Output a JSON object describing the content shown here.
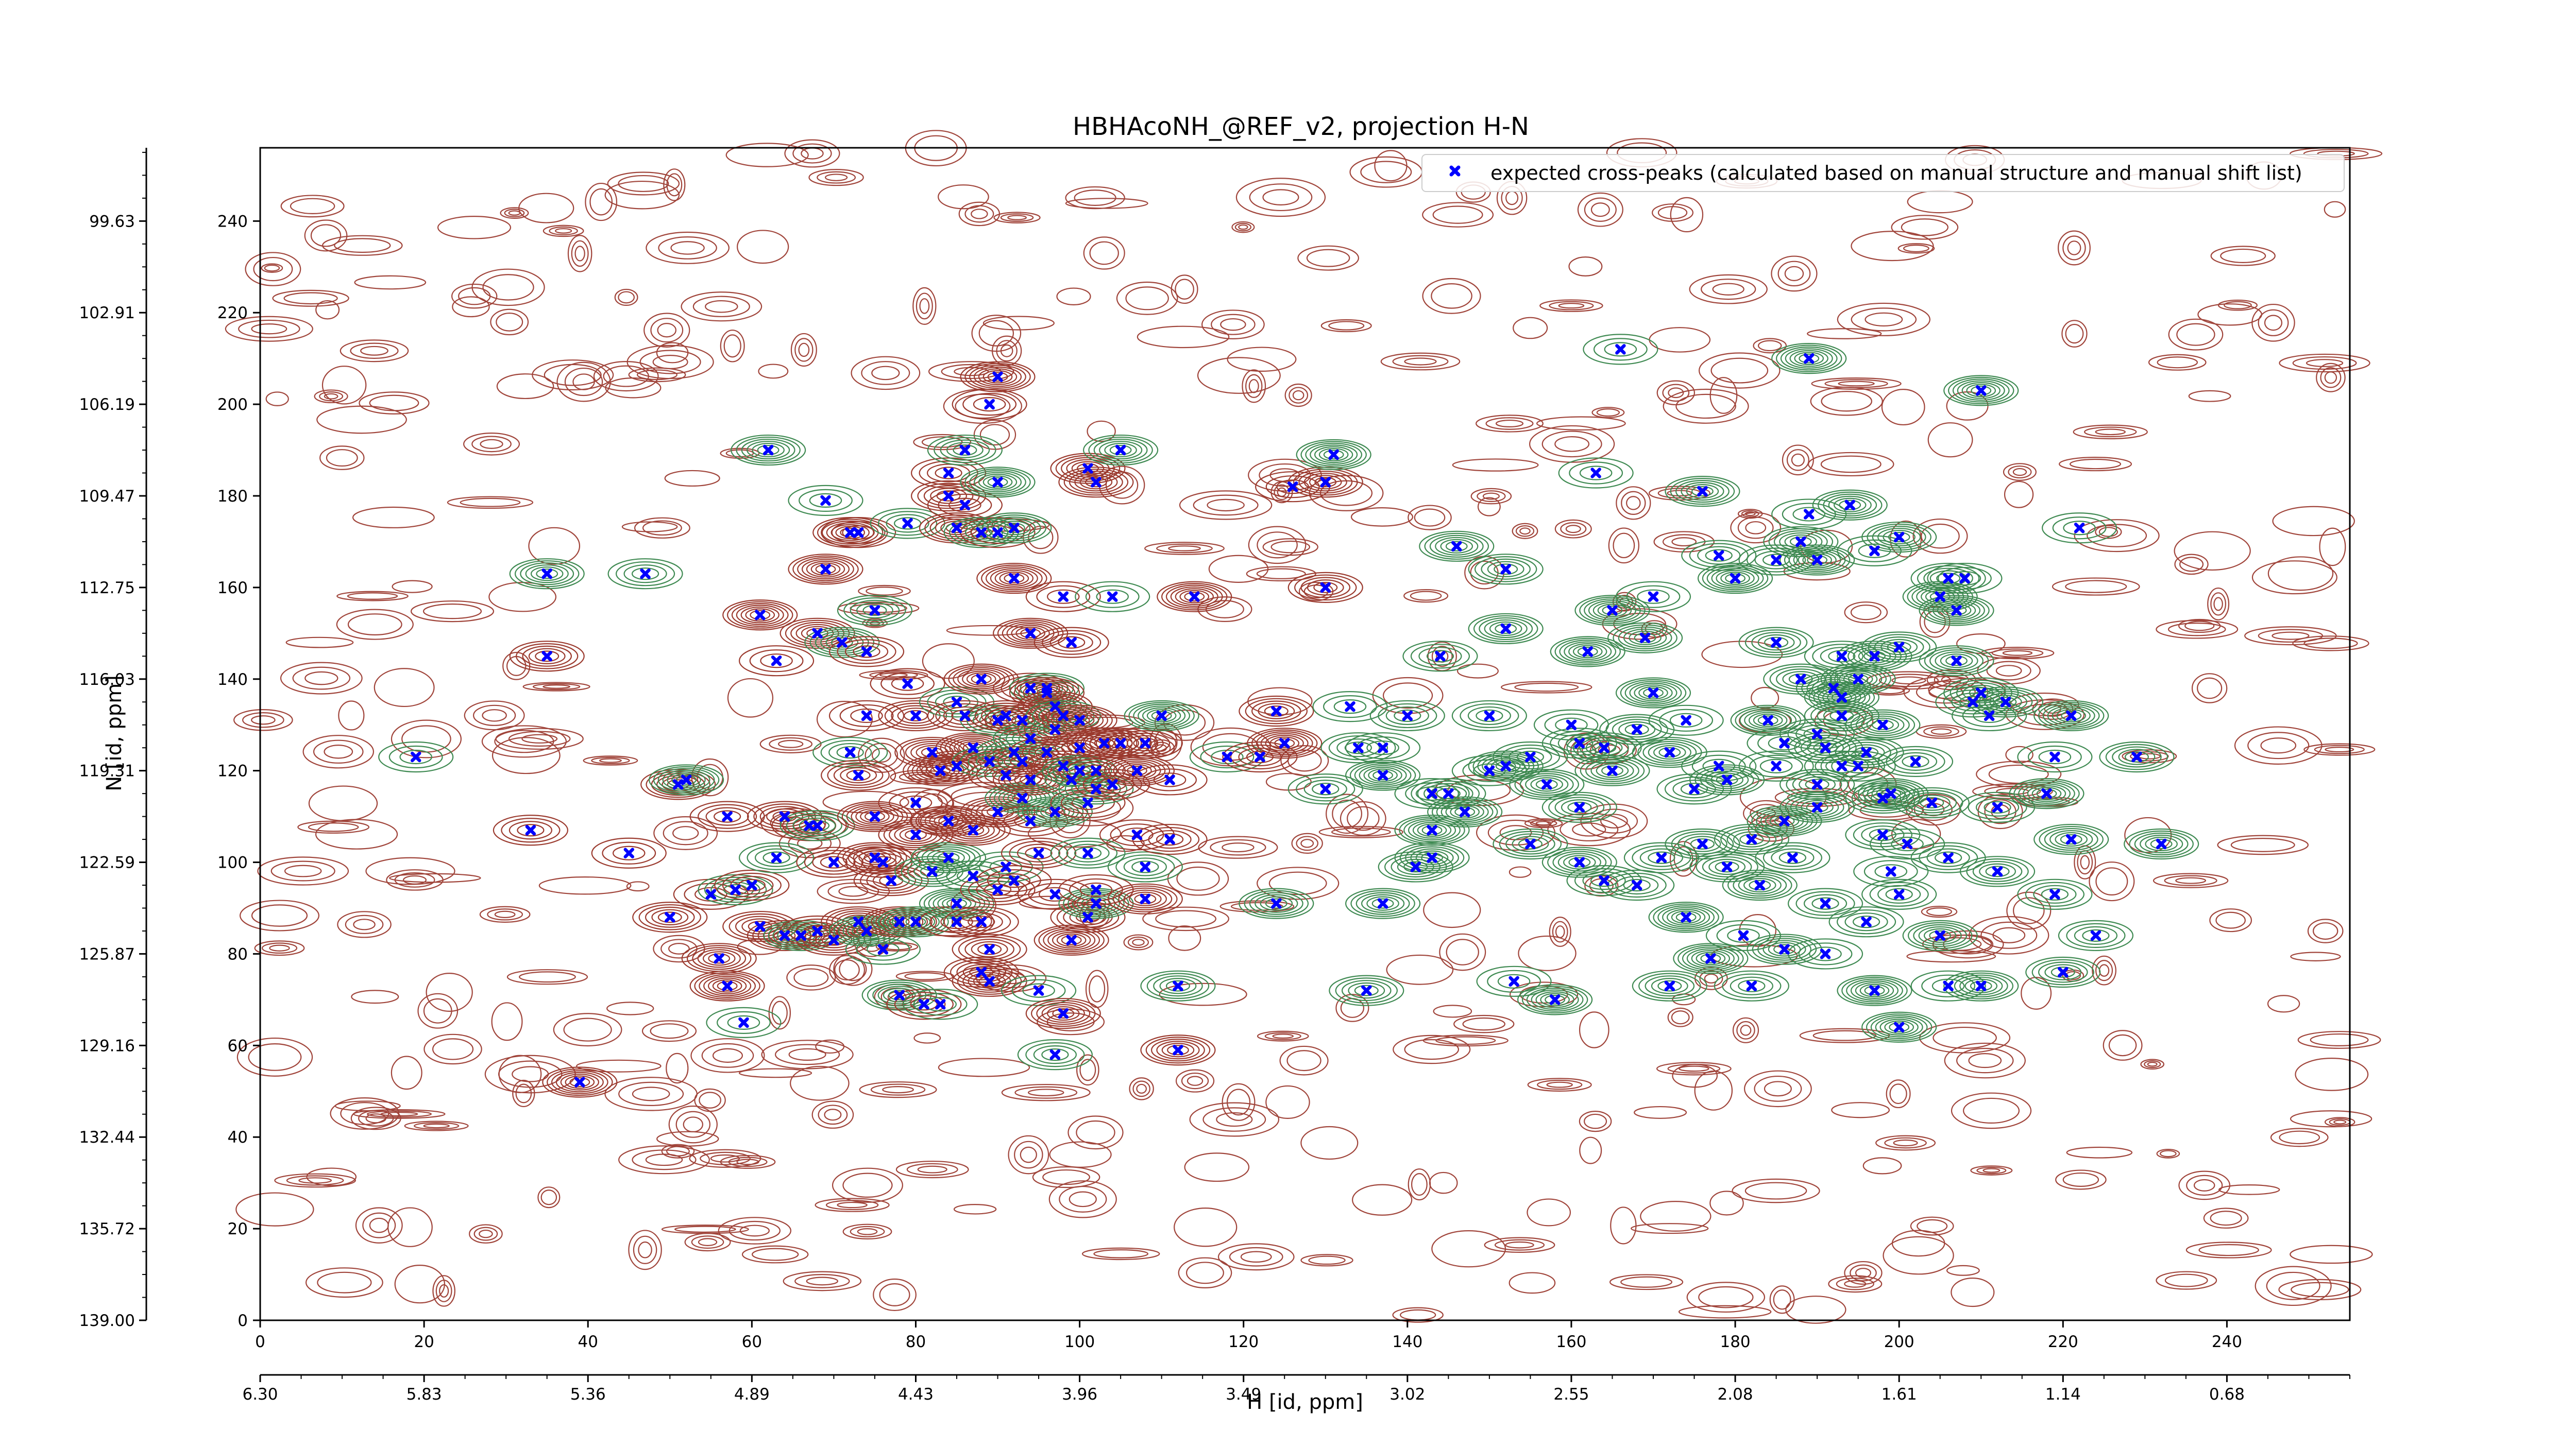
{
  "chart_data": {
    "type": "scatter",
    "title": "HBHAcoNH_@REF_v2, projection H-N",
    "xlabel": "H [id, ppm]",
    "ylabel": "N [id, ppm]",
    "x_index_ticks": [
      "0",
      "20",
      "40",
      "60",
      "80",
      "100",
      "120",
      "140",
      "160",
      "180",
      "200",
      "220",
      "240"
    ],
    "x_ppm_ticks": [
      "6.30",
      "5.83",
      "5.36",
      "4.89",
      "4.43",
      "3.96",
      "3.49",
      "3.02",
      "2.55",
      "2.08",
      "1.61",
      "1.14",
      "0.68"
    ],
    "y_index_ticks": [
      "0",
      "20",
      "40",
      "60",
      "80",
      "100",
      "120",
      "140",
      "160",
      "180",
      "200",
      "220",
      "240"
    ],
    "y_ppm_ticks": [
      "139.00",
      "135.72",
      "132.44",
      "129.16",
      "125.87",
      "122.59",
      "119.31",
      "116.03",
      "112.75",
      "109.47",
      "106.19",
      "102.91",
      "99.63"
    ],
    "xlim": [
      0,
      255
    ],
    "ylim": [
      0,
      256
    ],
    "grid": false,
    "legend_position": "top-right",
    "series": [
      {
        "name": "expected cross-peaks (calculated based on manual structure and manual shift list)",
        "marker": "x",
        "color": "#0000ff",
        "points": [
          [
            19,
            123
          ],
          [
            33,
            107
          ],
          [
            35,
            145
          ],
          [
            35,
            163
          ],
          [
            39,
            52
          ],
          [
            45,
            102
          ],
          [
            47,
            163
          ],
          [
            50,
            88
          ],
          [
            51,
            117
          ],
          [
            52,
            118
          ],
          [
            55,
            93
          ],
          [
            57,
            110
          ],
          [
            58,
            94
          ],
          [
            56,
            79
          ],
          [
            57,
            73
          ],
          [
            59,
            65
          ],
          [
            60,
            95
          ],
          [
            61,
            86
          ],
          [
            62,
            190
          ],
          [
            61,
            154
          ],
          [
            63,
            144
          ],
          [
            63,
            101
          ],
          [
            64,
            110
          ],
          [
            64,
            84
          ],
          [
            66,
            84
          ],
          [
            67,
            108
          ],
          [
            68,
            85
          ],
          [
            68,
            108
          ],
          [
            68,
            150
          ],
          [
            69,
            164
          ],
          [
            69,
            179
          ],
          [
            70,
            100
          ],
          [
            70,
            83
          ],
          [
            71,
            148
          ],
          [
            72,
            172
          ],
          [
            73,
            172
          ],
          [
            72,
            124
          ],
          [
            73,
            119
          ],
          [
            73,
            87
          ],
          [
            74,
            85
          ],
          [
            74,
            132
          ],
          [
            74,
            146
          ],
          [
            75,
            155
          ],
          [
            75,
            101
          ],
          [
            75,
            110
          ],
          [
            76,
            81
          ],
          [
            76,
            100
          ],
          [
            77,
            96
          ],
          [
            78,
            71
          ],
          [
            78,
            87
          ],
          [
            79,
            139
          ],
          [
            79,
            174
          ],
          [
            80,
            132
          ],
          [
            80,
            106
          ],
          [
            80,
            87
          ],
          [
            80,
            113
          ],
          [
            81,
            69
          ],
          [
            82,
            98
          ],
          [
            82,
            124
          ],
          [
            83,
            120
          ],
          [
            83,
            69
          ],
          [
            84,
            185
          ],
          [
            84,
            180
          ],
          [
            84,
            101
          ],
          [
            84,
            109
          ],
          [
            85,
            87
          ],
          [
            85,
            135
          ],
          [
            85,
            121
          ],
          [
            85,
            173
          ],
          [
            85,
            91
          ],
          [
            86,
            178
          ],
          [
            86,
            132
          ],
          [
            86,
            190
          ],
          [
            87,
            107
          ],
          [
            87,
            125
          ],
          [
            87,
            97
          ],
          [
            88,
            87
          ],
          [
            88,
            76
          ],
          [
            88,
            172
          ],
          [
            88,
            140
          ],
          [
            89,
            200
          ],
          [
            89,
            122
          ],
          [
            89,
            81
          ],
          [
            89,
            74
          ],
          [
            90,
            183
          ],
          [
            90,
            172
          ],
          [
            90,
            94
          ],
          [
            90,
            131
          ],
          [
            90,
            111
          ],
          [
            90,
            206
          ],
          [
            91,
            99
          ],
          [
            91,
            119
          ],
          [
            91,
            132
          ],
          [
            92,
            173
          ],
          [
            92,
            162
          ],
          [
            92,
            96
          ],
          [
            92,
            124
          ],
          [
            93,
            122
          ],
          [
            93,
            131
          ],
          [
            93,
            114
          ],
          [
            94,
            109
          ],
          [
            94,
            138
          ],
          [
            94,
            127
          ],
          [
            94,
            118
          ],
          [
            94,
            150
          ],
          [
            95,
            72
          ],
          [
            95,
            102
          ],
          [
            96,
            124
          ],
          [
            96,
            138
          ],
          [
            96,
            137
          ],
          [
            97,
            93
          ],
          [
            97,
            58
          ],
          [
            97,
            129
          ],
          [
            97,
            134
          ],
          [
            97,
            111
          ],
          [
            98,
            158
          ],
          [
            98,
            121
          ],
          [
            98,
            132
          ],
          [
            98,
            67
          ],
          [
            99,
            83
          ],
          [
            99,
            118
          ],
          [
            99,
            148
          ],
          [
            100,
            125
          ],
          [
            100,
            120
          ],
          [
            100,
            131
          ],
          [
            101,
            113
          ],
          [
            101,
            102
          ],
          [
            101,
            88
          ],
          [
            101,
            186
          ],
          [
            102,
            91
          ],
          [
            102,
            94
          ],
          [
            102,
            120
          ],
          [
            102,
            116
          ],
          [
            102,
            183
          ],
          [
            103,
            126
          ],
          [
            104,
            158
          ],
          [
            104,
            117
          ],
          [
            105,
            126
          ],
          [
            105,
            190
          ],
          [
            107,
            120
          ],
          [
            107,
            106
          ],
          [
            108,
            99
          ],
          [
            108,
            126
          ],
          [
            108,
            92
          ],
          [
            110,
            132
          ],
          [
            111,
            118
          ],
          [
            111,
            105
          ],
          [
            112,
            73
          ],
          [
            112,
            59
          ],
          [
            114,
            158
          ],
          [
            118,
            123
          ],
          [
            122,
            123
          ],
          [
            124,
            133
          ],
          [
            124,
            91
          ],
          [
            125,
            126
          ],
          [
            126,
            182
          ],
          [
            130,
            116
          ],
          [
            130,
            160
          ],
          [
            130,
            183
          ],
          [
            131,
            189
          ],
          [
            133,
            134
          ],
          [
            134,
            125
          ],
          [
            135,
            72
          ],
          [
            137,
            91
          ],
          [
            137,
            119
          ],
          [
            137,
            125
          ],
          [
            140,
            132
          ],
          [
            141,
            99
          ],
          [
            143,
            101
          ],
          [
            143,
            107
          ],
          [
            143,
            115
          ],
          [
            144,
            145
          ],
          [
            145,
            115
          ],
          [
            146,
            169
          ],
          [
            147,
            111
          ],
          [
            150,
            120
          ],
          [
            150,
            132
          ],
          [
            152,
            164
          ],
          [
            152,
            151
          ],
          [
            152,
            121
          ],
          [
            153,
            74
          ],
          [
            155,
            123
          ],
          [
            155,
            104
          ],
          [
            157,
            117
          ],
          [
            158,
            70
          ],
          [
            160,
            130
          ],
          [
            161,
            126
          ],
          [
            161,
            112
          ],
          [
            161,
            100
          ],
          [
            162,
            146
          ],
          [
            163,
            185
          ],
          [
            164,
            96
          ],
          [
            164,
            125
          ],
          [
            165,
            120
          ],
          [
            165,
            155
          ],
          [
            166,
            212
          ],
          [
            168,
            95
          ],
          [
            168,
            129
          ],
          [
            169,
            149
          ],
          [
            170,
            137
          ],
          [
            170,
            158
          ],
          [
            171,
            101
          ],
          [
            172,
            73
          ],
          [
            172,
            124
          ],
          [
            174,
            88
          ],
          [
            174,
            131
          ],
          [
            175,
            116
          ],
          [
            176,
            104
          ],
          [
            176,
            181
          ],
          [
            177,
            79
          ],
          [
            178,
            121
          ],
          [
            178,
            167
          ],
          [
            179,
            99
          ],
          [
            179,
            118
          ],
          [
            180,
            162
          ],
          [
            181,
            84
          ],
          [
            182,
            73
          ],
          [
            182,
            105
          ],
          [
            183,
            95
          ],
          [
            184,
            131
          ],
          [
            185,
            121
          ],
          [
            185,
            166
          ],
          [
            185,
            148
          ],
          [
            186,
            81
          ],
          [
            186,
            109
          ],
          [
            186,
            126
          ],
          [
            187,
            101
          ],
          [
            188,
            140
          ],
          [
            188,
            170
          ],
          [
            189,
            210
          ],
          [
            189,
            176
          ],
          [
            190,
            128
          ],
          [
            190,
            117
          ],
          [
            190,
            112
          ],
          [
            190,
            166
          ],
          [
            191,
            80
          ],
          [
            191,
            91
          ],
          [
            191,
            125
          ],
          [
            192,
            138
          ],
          [
            193,
            136
          ],
          [
            193,
            121
          ],
          [
            193,
            145
          ],
          [
            193,
            132
          ],
          [
            194,
            178
          ],
          [
            195,
            140
          ],
          [
            195,
            121
          ],
          [
            196,
            87
          ],
          [
            196,
            124
          ],
          [
            197,
            145
          ],
          [
            197,
            72
          ],
          [
            197,
            168
          ],
          [
            198,
            106
          ],
          [
            198,
            114
          ],
          [
            198,
            130
          ],
          [
            199,
            115
          ],
          [
            199,
            98
          ],
          [
            200,
            93
          ],
          [
            200,
            147
          ],
          [
            200,
            171
          ],
          [
            200,
            64
          ],
          [
            201,
            104
          ],
          [
            202,
            122
          ],
          [
            204,
            113
          ],
          [
            205,
            84
          ],
          [
            205,
            158
          ],
          [
            206,
            73
          ],
          [
            206,
            101
          ],
          [
            206,
            162
          ],
          [
            207,
            144
          ],
          [
            207,
            155
          ],
          [
            208,
            162
          ],
          [
            209,
            135
          ],
          [
            210,
            137
          ],
          [
            210,
            73
          ],
          [
            210,
            203
          ],
          [
            211,
            132
          ],
          [
            212,
            112
          ],
          [
            212,
            98
          ],
          [
            213,
            135
          ],
          [
            218,
            115
          ],
          [
            219,
            123
          ],
          [
            219,
            93
          ],
          [
            220,
            76
          ],
          [
            221,
            105
          ],
          [
            221,
            132
          ],
          [
            222,
            173
          ],
          [
            224,
            84
          ],
          [
            229,
            123
          ],
          [
            232,
            104
          ]
        ]
      }
    ]
  }
}
